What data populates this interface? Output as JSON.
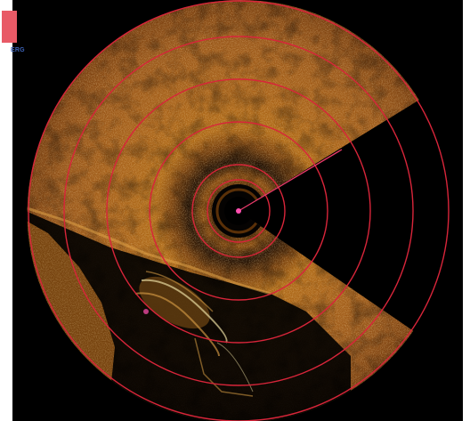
{
  "legend": {
    "label": "ERG",
    "swatch_color": "#e85a66"
  },
  "sonar": {
    "range_ring_count": 6,
    "ring_color": "#d8253a",
    "bearing_color": "#e83a6a",
    "center_marker_color": "#ff4fb0",
    "palette": [
      "#000000",
      "#3a1c04",
      "#7a430c",
      "#b8741e",
      "#e0a347",
      "#fff1b0"
    ]
  }
}
